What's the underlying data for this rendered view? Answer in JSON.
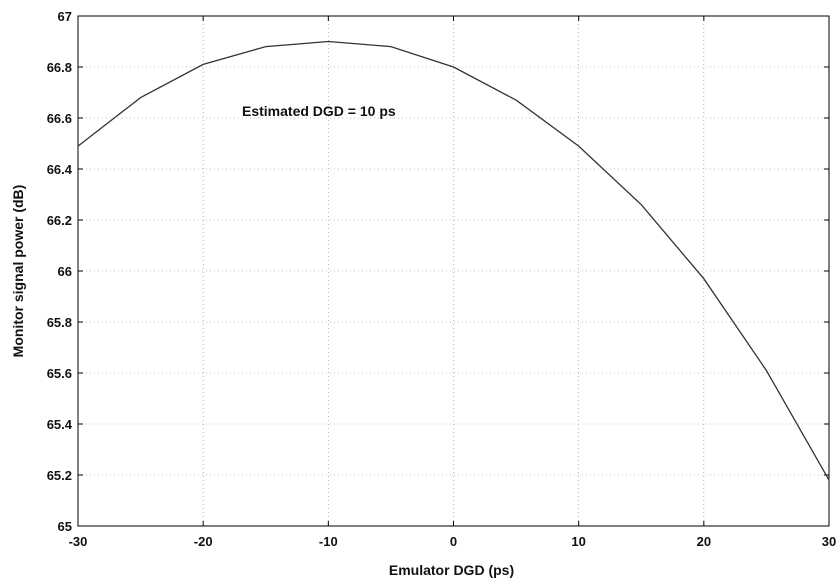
{
  "chart_data": {
    "type": "line",
    "xlabel": "Emulator DGD (ps)",
    "ylabel": "Monitor signal power (dB)",
    "xlim": [
      -30,
      30
    ],
    "ylim": [
      65,
      67
    ],
    "xticks": [
      -30,
      -20,
      -10,
      0,
      10,
      20,
      30
    ],
    "yticks": [
      65,
      65.2,
      65.4,
      65.6,
      65.8,
      66,
      66.2,
      66.4,
      66.6,
      66.8,
      67
    ],
    "grid": true,
    "annotation": "Estimated DGD = 10 ps",
    "series": [
      {
        "x": [
          -30,
          -25,
          -20,
          -15,
          -10,
          -5,
          0,
          5,
          10,
          15,
          20,
          25,
          30
        ],
        "y": [
          66.49,
          66.68,
          66.81,
          66.88,
          66.9,
          66.88,
          66.8,
          66.67,
          66.49,
          66.26,
          65.97,
          65.61,
          65.18
        ]
      }
    ],
    "line_color": "#333333"
  }
}
